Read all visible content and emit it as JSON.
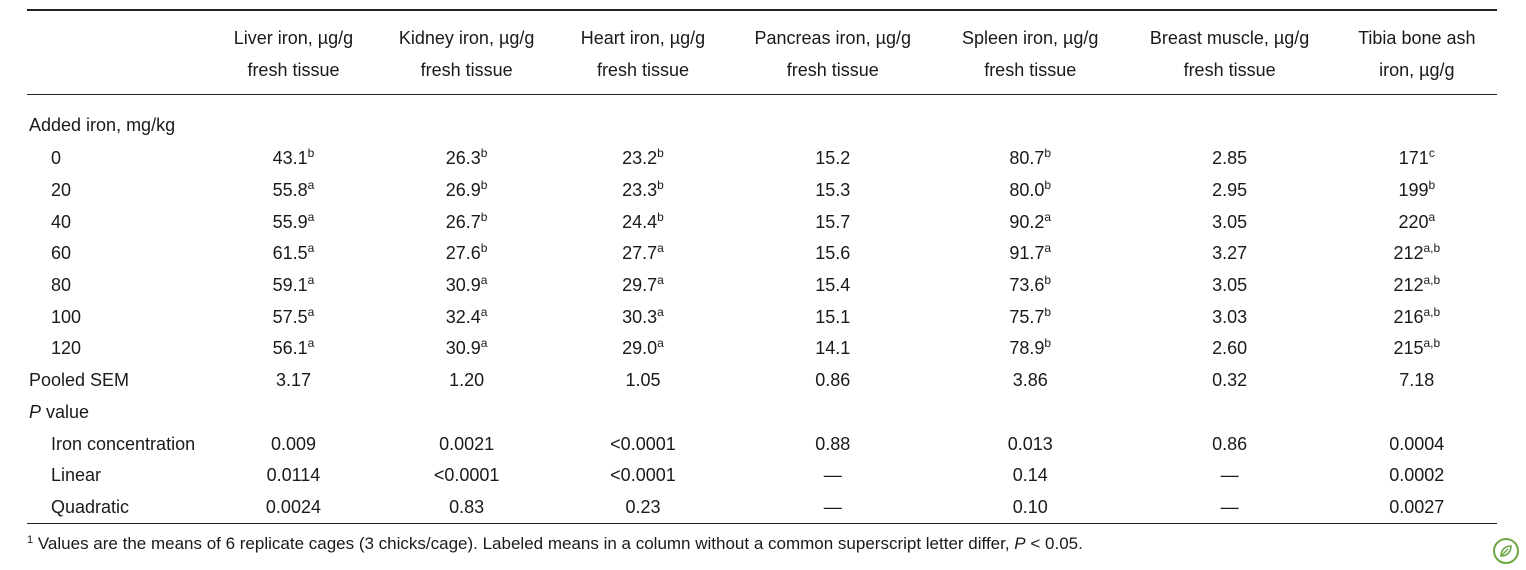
{
  "table": {
    "columns": [
      {
        "line1": "Liver iron, µg/g",
        "line2": "fresh tissue"
      },
      {
        "line1": "Kidney iron, µg/g",
        "line2": "fresh tissue"
      },
      {
        "line1": "Heart iron, µg/g",
        "line2": "fresh tissue"
      },
      {
        "line1": "Pancreas iron, µg/g",
        "line2": "fresh tissue"
      },
      {
        "line1": "Spleen iron, µg/g",
        "line2": "fresh tissue"
      },
      {
        "line1": "Breast muscle, µg/g",
        "line2": "fresh tissue"
      },
      {
        "line1": "Tibia bone ash",
        "line2": "iron, µg/g"
      }
    ],
    "rows": [
      {
        "label": "Added iron, mg/kg",
        "indent": false,
        "italic_label": false,
        "cells": []
      },
      {
        "label": "0",
        "indent": true,
        "cells": [
          {
            "v": "43.1",
            "s": "b"
          },
          {
            "v": "26.3",
            "s": "b"
          },
          {
            "v": "23.2",
            "s": "b"
          },
          {
            "v": "15.2",
            "s": ""
          },
          {
            "v": "80.7",
            "s": "b"
          },
          {
            "v": "2.85",
            "s": ""
          },
          {
            "v": "171",
            "s": "c"
          }
        ]
      },
      {
        "label": "20",
        "indent": true,
        "cells": [
          {
            "v": "55.8",
            "s": "a"
          },
          {
            "v": "26.9",
            "s": "b"
          },
          {
            "v": "23.3",
            "s": "b"
          },
          {
            "v": "15.3",
            "s": ""
          },
          {
            "v": "80.0",
            "s": "b"
          },
          {
            "v": "2.95",
            "s": ""
          },
          {
            "v": "199",
            "s": "b"
          }
        ]
      },
      {
        "label": "40",
        "indent": true,
        "cells": [
          {
            "v": "55.9",
            "s": "a"
          },
          {
            "v": "26.7",
            "s": "b"
          },
          {
            "v": "24.4",
            "s": "b"
          },
          {
            "v": "15.7",
            "s": ""
          },
          {
            "v": "90.2",
            "s": "a"
          },
          {
            "v": "3.05",
            "s": ""
          },
          {
            "v": "220",
            "s": "a"
          }
        ]
      },
      {
        "label": "60",
        "indent": true,
        "cells": [
          {
            "v": "61.5",
            "s": "a"
          },
          {
            "v": "27.6",
            "s": "b"
          },
          {
            "v": "27.7",
            "s": "a"
          },
          {
            "v": "15.6",
            "s": ""
          },
          {
            "v": "91.7",
            "s": "a"
          },
          {
            "v": "3.27",
            "s": ""
          },
          {
            "v": "212",
            "s": "a,b"
          }
        ]
      },
      {
        "label": "80",
        "indent": true,
        "cells": [
          {
            "v": "59.1",
            "s": "a"
          },
          {
            "v": "30.9",
            "s": "a"
          },
          {
            "v": "29.7",
            "s": "a"
          },
          {
            "v": "15.4",
            "s": ""
          },
          {
            "v": "73.6",
            "s": "b"
          },
          {
            "v": "3.05",
            "s": ""
          },
          {
            "v": "212",
            "s": "a,b"
          }
        ]
      },
      {
        "label": "100",
        "indent": true,
        "cells": [
          {
            "v": "57.5",
            "s": "a"
          },
          {
            "v": "32.4",
            "s": "a"
          },
          {
            "v": "30.3",
            "s": "a"
          },
          {
            "v": "15.1",
            "s": ""
          },
          {
            "v": "75.7",
            "s": "b"
          },
          {
            "v": "3.03",
            "s": ""
          },
          {
            "v": "216",
            "s": "a,b"
          }
        ]
      },
      {
        "label": "120",
        "indent": true,
        "cells": [
          {
            "v": "56.1",
            "s": "a"
          },
          {
            "v": "30.9",
            "s": "a"
          },
          {
            "v": "29.0",
            "s": "a"
          },
          {
            "v": "14.1",
            "s": ""
          },
          {
            "v": "78.9",
            "s": "b"
          },
          {
            "v": "2.60",
            "s": ""
          },
          {
            "v": "215",
            "s": "a,b"
          }
        ]
      },
      {
        "label": "Pooled SEM",
        "indent": false,
        "cells": [
          {
            "v": "3.17",
            "s": ""
          },
          {
            "v": "1.20",
            "s": ""
          },
          {
            "v": "1.05",
            "s": ""
          },
          {
            "v": "0.86",
            "s": ""
          },
          {
            "v": "3.86",
            "s": ""
          },
          {
            "v": "0.32",
            "s": ""
          },
          {
            "v": "7.18",
            "s": ""
          }
        ]
      },
      {
        "label": "P",
        "label_suffix": " value",
        "indent": false,
        "italic_label": true,
        "cells": []
      },
      {
        "label": "Iron concentration",
        "indent": true,
        "cells": [
          {
            "v": "0.009",
            "s": ""
          },
          {
            "v": "0.0021",
            "s": ""
          },
          {
            "v": "<0.0001",
            "s": ""
          },
          {
            "v": "0.88",
            "s": ""
          },
          {
            "v": "0.013",
            "s": ""
          },
          {
            "v": "0.86",
            "s": ""
          },
          {
            "v": "0.0004",
            "s": ""
          }
        ]
      },
      {
        "label": "Linear",
        "indent": true,
        "cells": [
          {
            "v": "0.0114",
            "s": ""
          },
          {
            "v": "<0.0001",
            "s": ""
          },
          {
            "v": "<0.0001",
            "s": ""
          },
          {
            "v": "—",
            "s": ""
          },
          {
            "v": "0.14",
            "s": ""
          },
          {
            "v": "—",
            "s": ""
          },
          {
            "v": "0.0002",
            "s": ""
          }
        ]
      },
      {
        "label": "Quadratic",
        "indent": true,
        "cells": [
          {
            "v": "0.0024",
            "s": ""
          },
          {
            "v": "0.83",
            "s": ""
          },
          {
            "v": "0.23",
            "s": ""
          },
          {
            "v": "—",
            "s": ""
          },
          {
            "v": "0.10",
            "s": ""
          },
          {
            "v": "—",
            "s": ""
          },
          {
            "v": "0.0027",
            "s": ""
          }
        ]
      }
    ]
  },
  "footnote": {
    "marker": "1",
    "text_before": "Values are the means of 6 replicate cages (3 chicks/cage). Labeled means in a column without a common superscript letter differ, ",
    "p_italic": "P",
    "text_after": " < 0.05."
  },
  "logo": {
    "icon": "leaf-logo-icon",
    "color": "#6ea843"
  }
}
